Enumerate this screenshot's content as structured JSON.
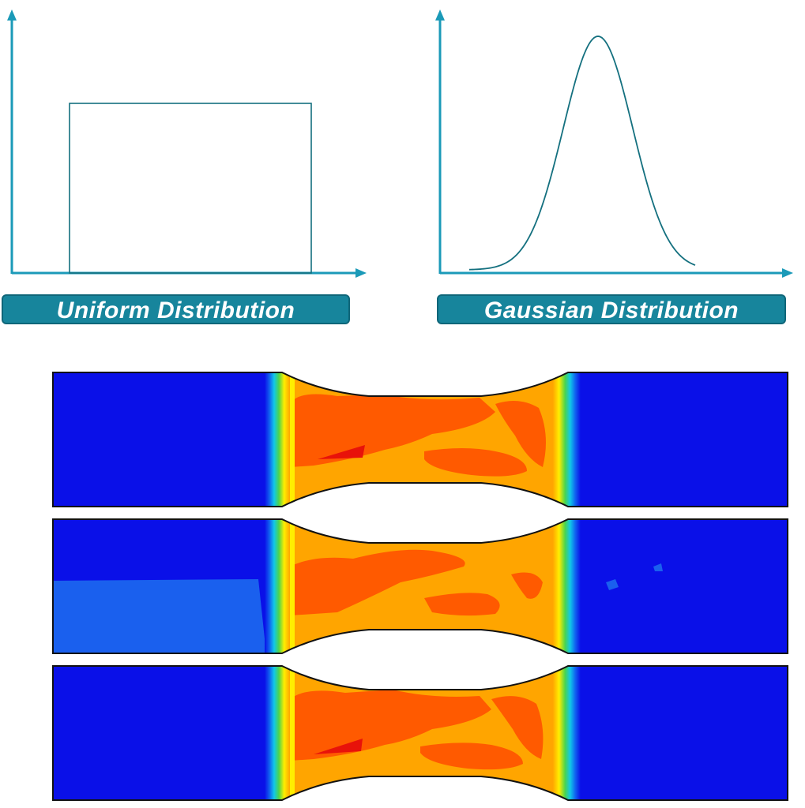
{
  "labels": {
    "uniform": "Uniform Distribution",
    "gaussian": "Gaussian Distribution"
  },
  "colors": {
    "axis": "#1b9ab8",
    "curve": "#14707f",
    "label_bg": "#17859c",
    "cold": "#0a10e8",
    "hot_red": "#e8120a",
    "orange_red": "#ff5a00",
    "orange": "#ffa500",
    "yellow": "#ffee00",
    "green": "#4cd44c",
    "cyan": "#10c8e8"
  },
  "specimens": [
    {
      "variant": "uniform-a"
    },
    {
      "variant": "random-field"
    },
    {
      "variant": "uniform-b"
    }
  ]
}
